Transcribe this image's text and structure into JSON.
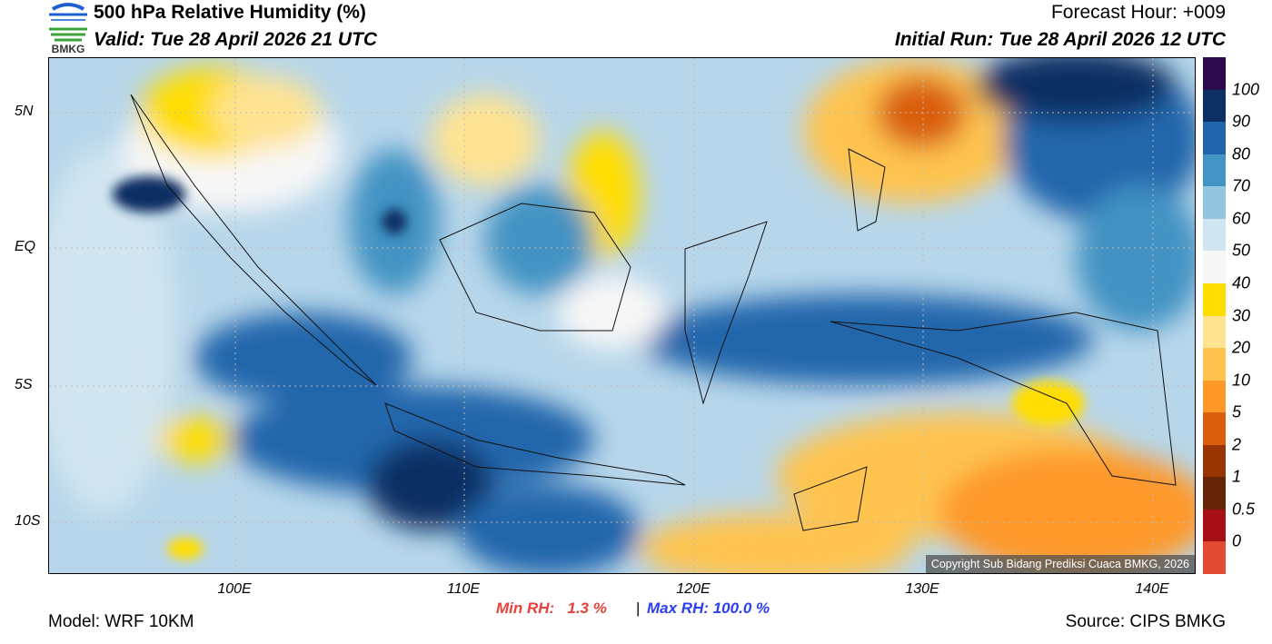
{
  "header": {
    "logo_text": "BMKG",
    "title": "500 hPa Relative Humidity (%)",
    "valid": "Valid: Tue 28 April 2026 21 UTC",
    "forecast_hour": "Forecast Hour: +009",
    "initial_run": "Initial Run: Tue 28 April 2026 12 UTC"
  },
  "map": {
    "lat_ticks": [
      "5N",
      "EQ",
      "5S",
      "10S"
    ],
    "lon_ticks": [
      "100E",
      "110E",
      "120E",
      "130E",
      "140E"
    ],
    "copyright": "Copyright Sub Bidang Prediksi Cuaca BMKG, 2026"
  },
  "colorbar": {
    "colors": [
      "#2c0a4e",
      "#0d2f63",
      "#2166ac",
      "#4393c3",
      "#92c5de",
      "#d1e5f0",
      "#f7f7f7",
      "#ffdd00",
      "#fee391",
      "#fec44f",
      "#fe9929",
      "#d95f0e",
      "#993404",
      "#662506",
      "#a50f15",
      "#e34a33"
    ],
    "labels": [
      "100",
      "90",
      "80",
      "70",
      "60",
      "50",
      "40",
      "30",
      "20",
      "10",
      "5",
      "2",
      "1",
      "0.5",
      "0"
    ]
  },
  "footer": {
    "model": "Model: WRF 10KM",
    "min_rh": "Min RH:   1.3 %",
    "separator": "|",
    "max_rh": "Max RH: 100.0 %",
    "source": "Source: CIPS BMKG"
  }
}
